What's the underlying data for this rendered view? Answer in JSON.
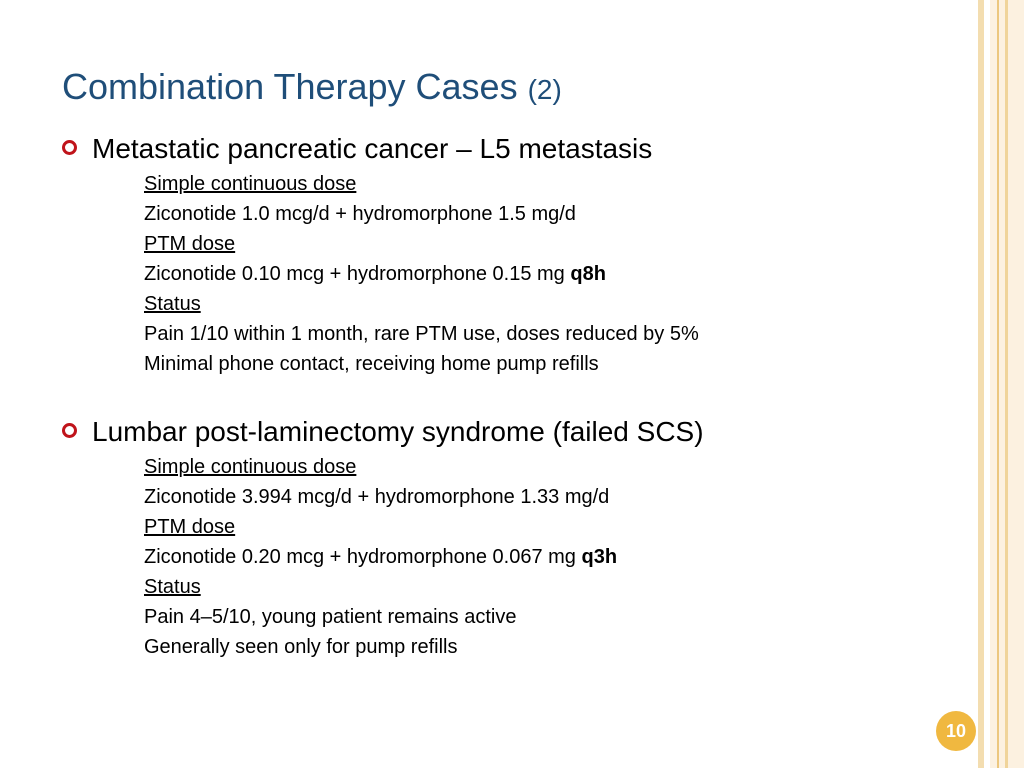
{
  "slide": {
    "title": "Combination Therapy Cases",
    "title_number": "(2)",
    "page_number": "10",
    "accent_color": "#f0b840",
    "bullet_color": "#c0141b",
    "cases": [
      {
        "heading": "Metastatic pancreatic cancer – L5 metastasis",
        "continuous_label": "Simple continuous dose",
        "continuous_value": "Ziconotide 1.0 mcg/d + hydromorphone 1.5 mg/d",
        "ptm_label": "PTM dose",
        "ptm_value": "Ziconotide 0.10 mcg + hydromorphone 0.15 mg ",
        "ptm_freq": "q8h",
        "status_label": "Status",
        "status_lines": [
          "Pain 1/10 within 1 month, rare PTM use, doses reduced by 5%",
          "Minimal phone contact, receiving home pump refills"
        ]
      },
      {
        "heading": "Lumbar post-laminectomy syndrome (failed SCS)",
        "continuous_label": "Simple continuous dose",
        "continuous_value": "Ziconotide 3.994 mcg/d + hydromorphone 1.33 mg/d",
        "ptm_label": "PTM dose",
        "ptm_value": "Ziconotide 0.20 mcg + hydromorphone 0.067 mg ",
        "ptm_freq": "q3h",
        "status_label": "Status",
        "status_lines": [
          "Pain 4–5/10,  young patient remains active",
          "Generally seen only for pump refills"
        ]
      }
    ]
  }
}
